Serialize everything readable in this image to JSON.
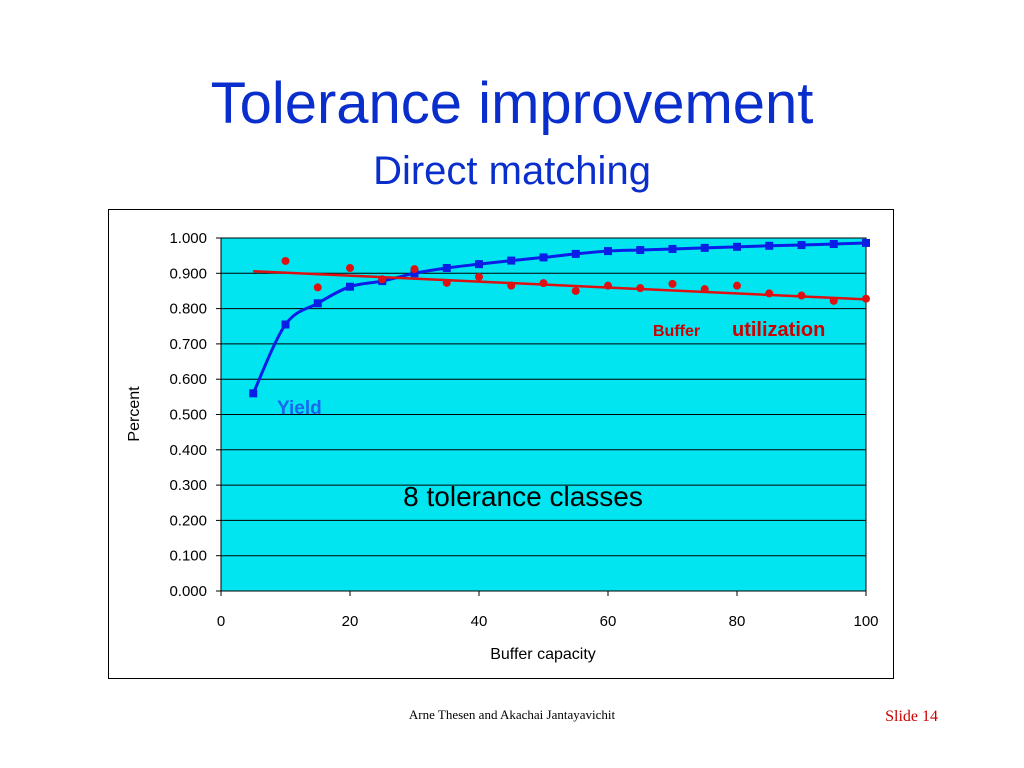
{
  "slide": {
    "title": "Tolerance improvement",
    "subtitle": "Direct matching",
    "footer_author": "Arne Thesen and Akachai Jantayavichit",
    "footer_slide_label": "Slide",
    "footer_slide_number": "14"
  },
  "colors": {
    "plot_background": "#00e5f0",
    "yield_series": "#0a1ee6",
    "utilization_series": "#dd1111",
    "title": "#0a2ecc",
    "gridline": "#000000"
  },
  "chart_data": {
    "type": "scatter",
    "title": "",
    "xlabel": "Buffer capacity",
    "ylabel": "Percent",
    "xlim": [
      0,
      100
    ],
    "ylim": [
      0,
      1.0
    ],
    "x_ticks": [
      "0",
      "20",
      "40",
      "60",
      "80",
      "100"
    ],
    "y_ticks": [
      "0.000",
      "0.100",
      "0.200",
      "0.300",
      "0.400",
      "0.500",
      "0.600",
      "0.700",
      "0.800",
      "0.900",
      "1.000"
    ],
    "grid": "horizontal",
    "annotations": {
      "inner_text": "8 tolerance classes",
      "yield_label": "Yield",
      "utilization_label_small": "Buffer",
      "utilization_label_large": "utilization"
    },
    "series": [
      {
        "name": "Yield",
        "marker": "square",
        "line": "smooth",
        "x": [
          5,
          10,
          15,
          20,
          25,
          30,
          35,
          40,
          45,
          50,
          55,
          60,
          65,
          70,
          75,
          80,
          85,
          90,
          95,
          100
        ],
        "values": [
          0.56,
          0.755,
          0.815,
          0.862,
          0.878,
          0.9,
          0.915,
          0.926,
          0.936,
          0.945,
          0.955,
          0.963,
          0.966,
          0.969,
          0.972,
          0.975,
          0.978,
          0.98,
          0.983,
          0.986
        ]
      },
      {
        "name": "Buffer utilization",
        "marker": "circle",
        "line": "linear trend",
        "x": [
          10,
          15,
          20,
          25,
          30,
          35,
          40,
          45,
          50,
          55,
          60,
          65,
          70,
          75,
          80,
          85,
          90,
          95,
          100
        ],
        "values": [
          0.935,
          0.86,
          0.915,
          0.883,
          0.912,
          0.873,
          0.89,
          0.865,
          0.872,
          0.85,
          0.865,
          0.858,
          0.87,
          0.855,
          0.865,
          0.843,
          0.837,
          0.822,
          0.828
        ],
        "trend": {
          "x": [
            5,
            100
          ],
          "values": [
            0.906,
            0.826
          ]
        }
      }
    ]
  }
}
